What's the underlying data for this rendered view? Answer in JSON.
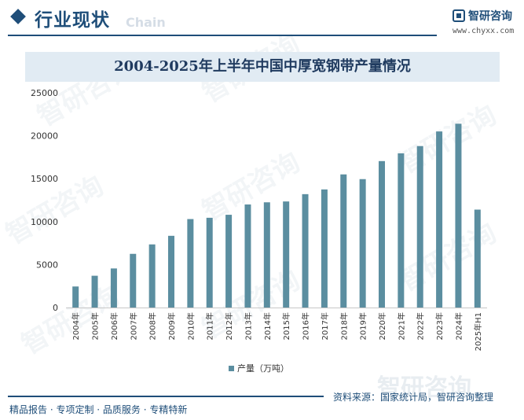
{
  "header": {
    "section_title": "行业现状",
    "ghost_word": "Chain",
    "brand_name": "智研咨询",
    "brand_url": "www.chyxx.com"
  },
  "watermark": "智研咨询",
  "colors": {
    "accent": "#1f4e79",
    "bar": "#5b8ea0",
    "band": "#e1ebf3"
  },
  "chart_data": {
    "type": "bar",
    "title": "2004-2025年上半年中国中厚宽钢带产量情况",
    "categories": [
      "2004年",
      "2005年",
      "2006年",
      "2007年",
      "2008年",
      "2009年",
      "2010年",
      "2011年",
      "2012年",
      "2013年",
      "2014年",
      "2015年",
      "2016年",
      "2017年",
      "2018年",
      "2019年",
      "2020年",
      "2021年",
      "2022年",
      "2023年",
      "2024年",
      "2025年H1"
    ],
    "series": [
      {
        "name": "产量（万吨）",
        "values": [
          2450,
          3700,
          4550,
          6250,
          7350,
          8350,
          10300,
          10450,
          10800,
          12000,
          12250,
          12350,
          13200,
          13750,
          15500,
          14950,
          17050,
          17950,
          18800,
          20500,
          21400,
          11400
        ]
      }
    ],
    "ylim": [
      0,
      25000
    ],
    "yticks": [
      0,
      5000,
      10000,
      15000,
      20000,
      25000
    ],
    "xlabel": "",
    "ylabel": "",
    "legend": "bottom-center",
    "grid": false
  },
  "footer": {
    "left": "精品报告 · 专项定制 · 品质服务 · 专精特新",
    "source": "资料来源：国家统计局，智研咨询整理"
  }
}
